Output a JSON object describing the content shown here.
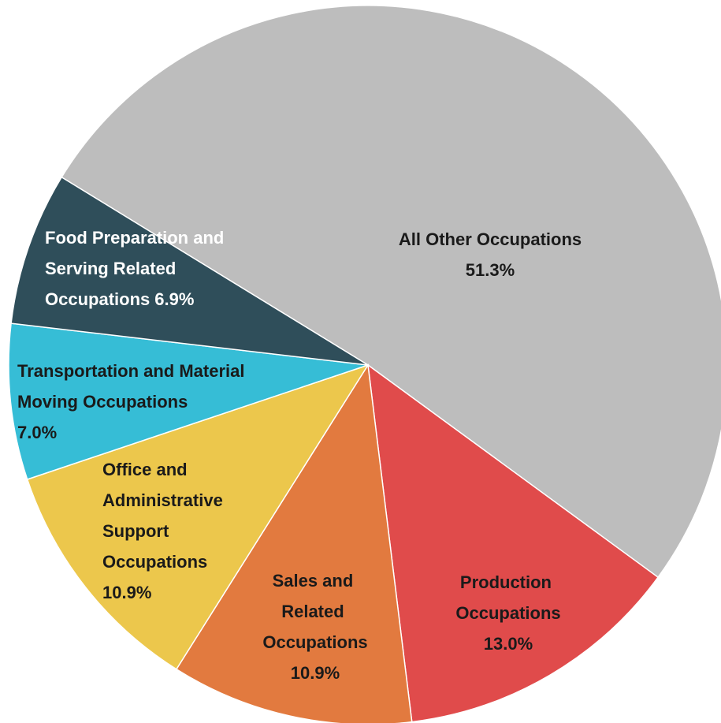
{
  "chart_data": {
    "type": "pie",
    "categories": [
      "All Other Occupations",
      "Production Occupations",
      "Sales and Related Occupations",
      "Office and Administrative Support Occupations",
      "Transportation and Material Moving Occupations",
      "Food Preparation and Serving Related Occupations"
    ],
    "values": [
      51.3,
      13.0,
      10.9,
      10.9,
      7.0,
      6.9
    ],
    "value_labels": [
      "51.3%",
      "13.0%",
      "10.9%",
      "10.9%",
      "7.0%",
      "6.9%"
    ],
    "colors": [
      "#bdbdbd",
      "#e04b4b",
      "#e27a3f",
      "#ecc74c",
      "#36bdd6",
      "#2f4e5a"
    ]
  }
}
